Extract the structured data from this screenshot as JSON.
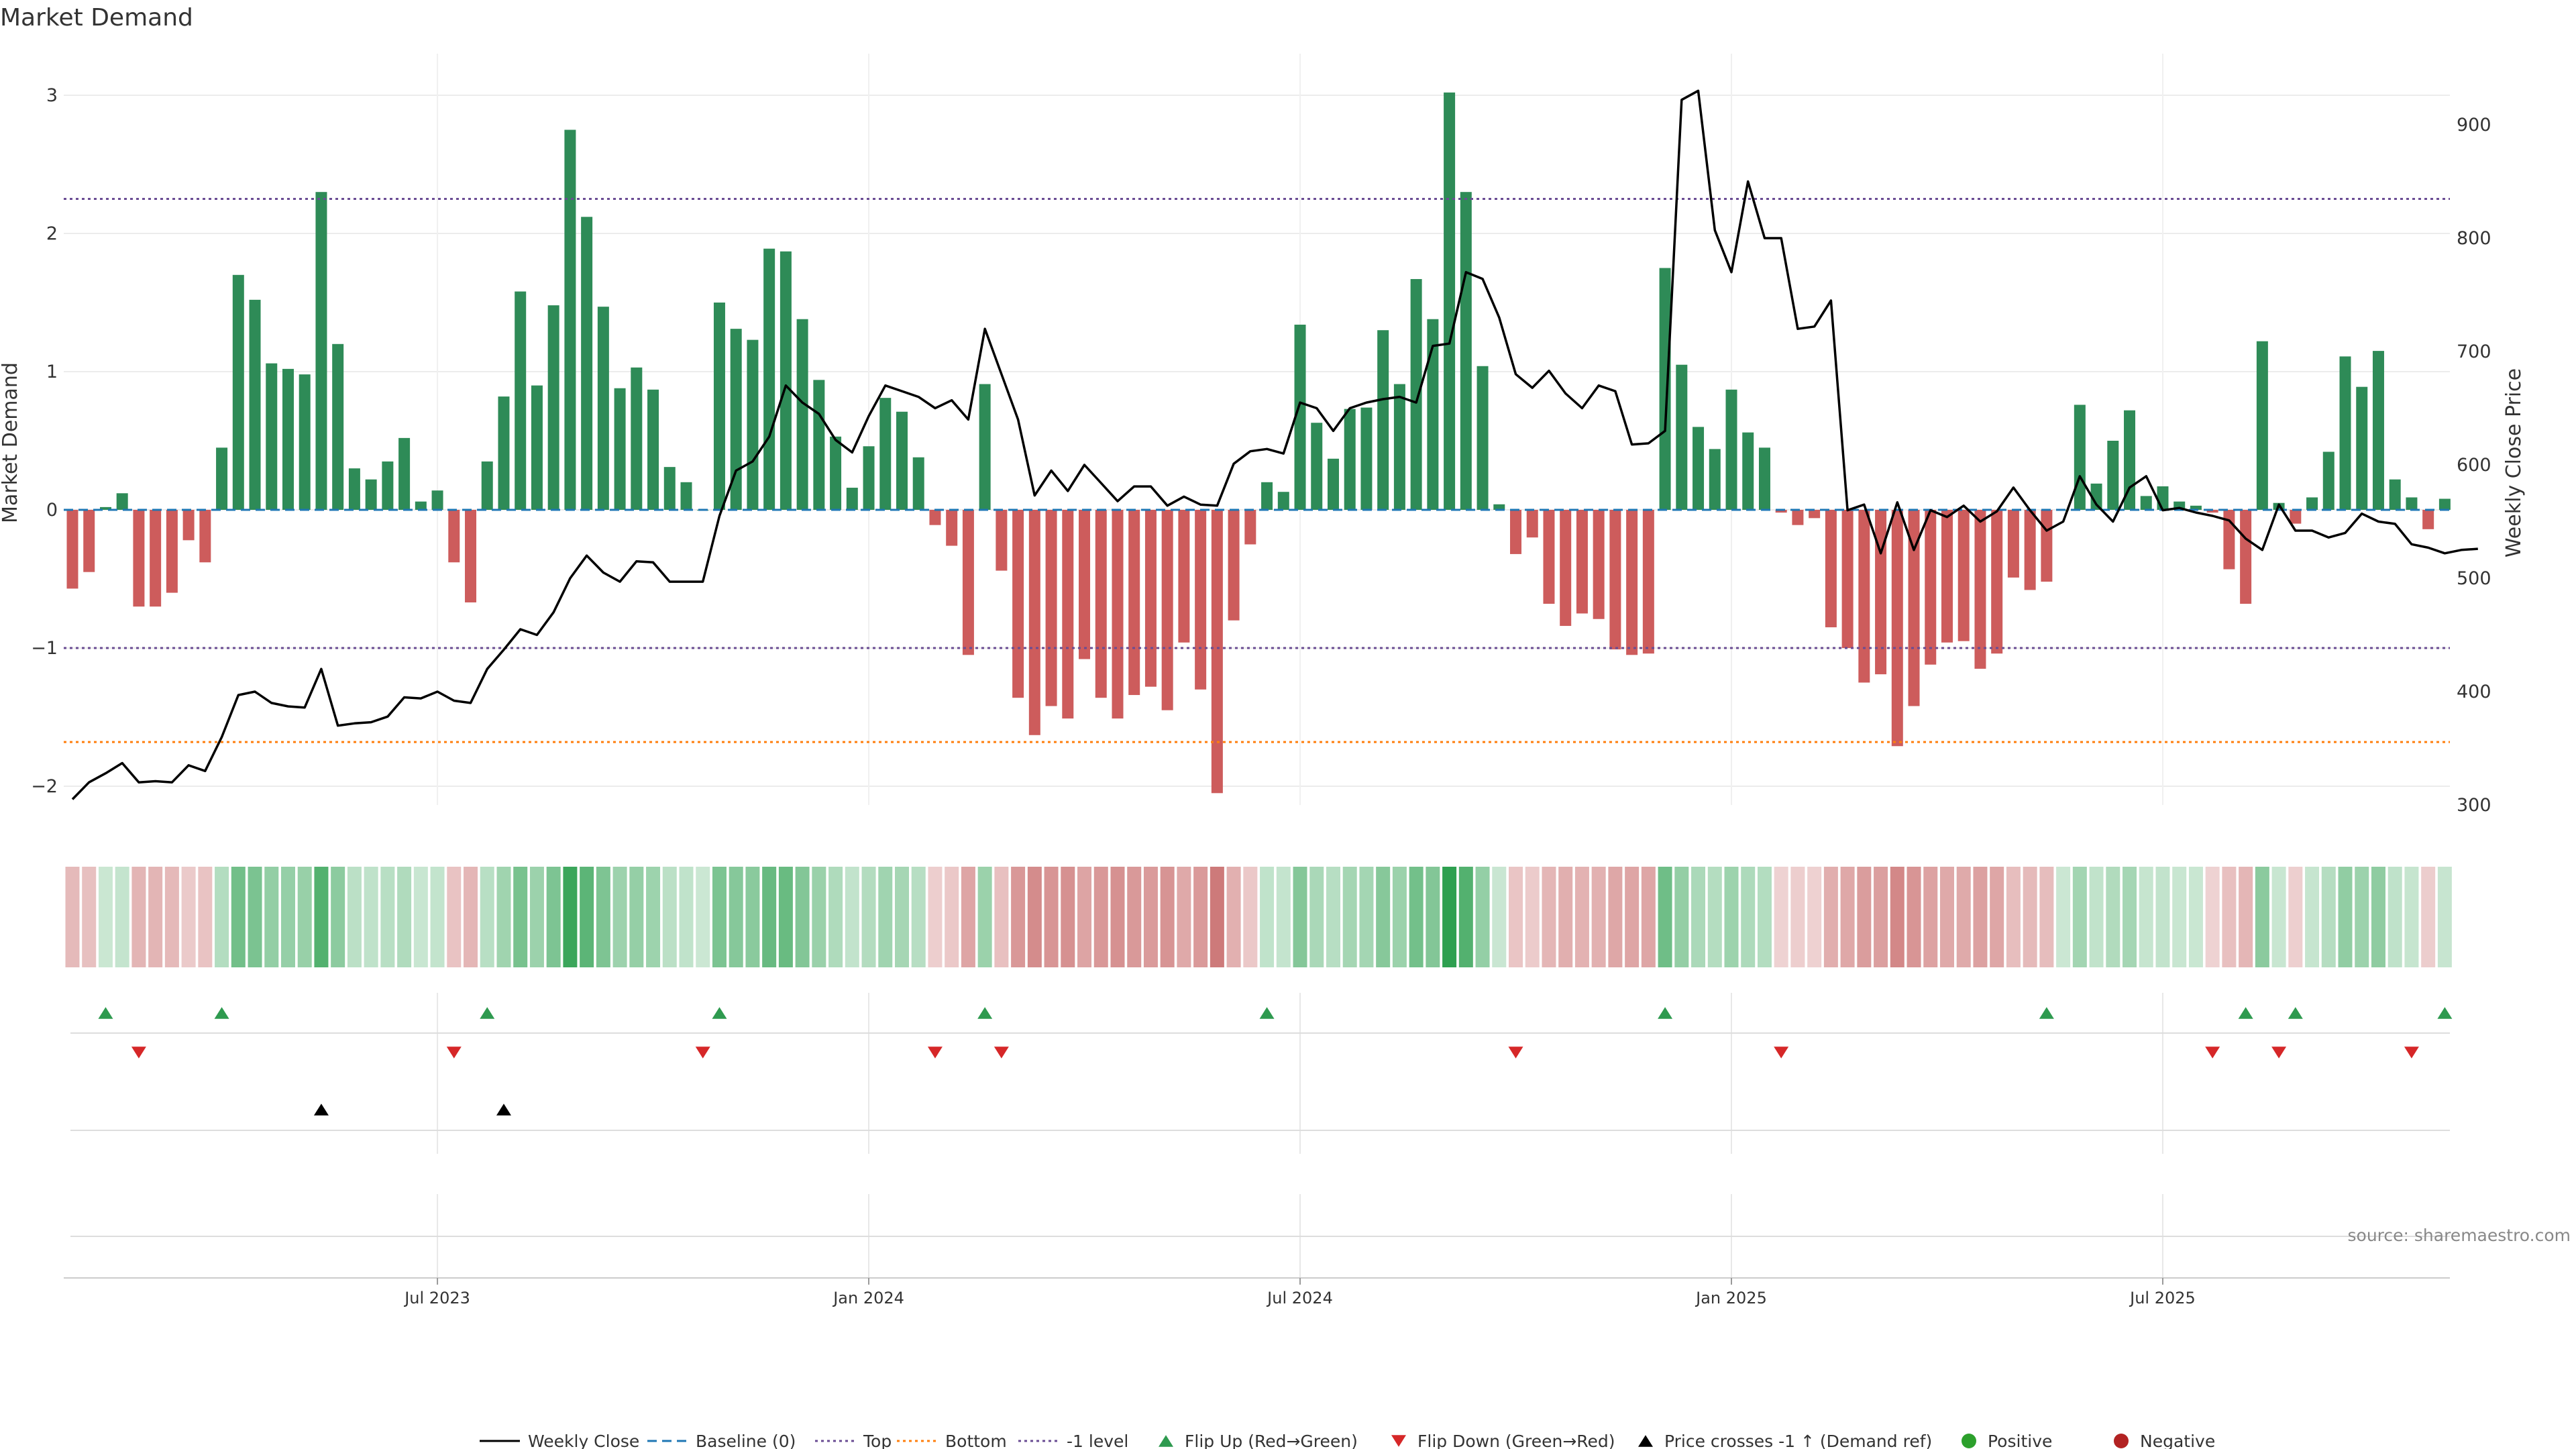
{
  "chart_data": {
    "type": "bar+line",
    "title": "Market Demand",
    "ylabel_left": "Market Demand",
    "ylabel_right": "Weekly Close Price",
    "source": "source: sharemaestro.com",
    "ylim_left": [
      -2.3,
      3.1
    ],
    "ylim_right": [
      280,
      940
    ],
    "left_ticks": [
      "3",
      "2",
      "1",
      "0",
      "−1",
      "−2"
    ],
    "left_tick_values": [
      3,
      2,
      1,
      0,
      -1,
      -2
    ],
    "right_ticks": [
      "900",
      "800",
      "700",
      "600",
      "500",
      "400",
      "300"
    ],
    "right_tick_values": [
      900,
      800,
      700,
      600,
      500,
      400,
      300
    ],
    "x_labels": [
      "Jul 2023",
      "Jan 2024",
      "Jul 2024",
      "Jan 2025",
      "Jul 2025"
    ],
    "x_label_weeks": [
      22,
      48,
      74,
      100,
      126
    ],
    "reference_lines": {
      "baseline": {
        "label": "Baseline (0)",
        "value": 0,
        "color": "#1f77b4"
      },
      "top": {
        "label": "Top",
        "value": 2.25,
        "color": "#6a4c93"
      },
      "bottom": {
        "label": "Bottom",
        "value": -1.68,
        "color": "#ff7f0e"
      },
      "minus_one": {
        "label": "-1 level",
        "value": -1,
        "color": "#6a4c93"
      }
    },
    "demand": [
      -0.57,
      -0.45,
      0.02,
      0.12,
      -0.7,
      -0.7,
      -0.6,
      -0.22,
      -0.38,
      0.45,
      1.7,
      1.52,
      1.06,
      1.02,
      0.98,
      2.3,
      1.2,
      0.3,
      0.22,
      0.35,
      0.52,
      0.06,
      0.14,
      -0.38,
      -0.67,
      0.35,
      0.82,
      1.58,
      0.9,
      1.48,
      2.75,
      2.12,
      1.47,
      0.88,
      1.03,
      0.87,
      0.31,
      0.2,
      0.0,
      1.5,
      1.31,
      1.23,
      1.89,
      1.87,
      1.38,
      0.94,
      0.53,
      0.16,
      0.46,
      0.81,
      0.71,
      0.38,
      -0.11,
      -0.26,
      -1.05,
      0.91,
      -0.44,
      -1.36,
      -1.63,
      -1.42,
      -1.51,
      -1.08,
      -1.36,
      -1.51,
      -1.34,
      -1.28,
      -1.45,
      -0.96,
      -1.3,
      -2.05,
      -0.8,
      -0.25,
      0.2,
      0.13,
      1.34,
      0.63,
      0.37,
      0.73,
      0.74,
      1.3,
      0.91,
      1.67,
      1.38,
      3.02,
      2.3,
      1.04,
      0.04,
      -0.32,
      -0.2,
      -0.68,
      -0.84,
      -0.75,
      -0.79,
      -1.01,
      -1.05,
      -1.04,
      1.75,
      1.05,
      0.6,
      0.44,
      0.87,
      0.56,
      0.45,
      -0.02,
      -0.11,
      -0.06,
      -0.85,
      -1.0,
      -1.25,
      -1.19,
      -1.71,
      -1.42,
      -1.12,
      -0.96,
      -0.95,
      -1.15,
      -1.04,
      -0.49,
      -0.58,
      -0.52,
      0.0,
      0.76,
      0.19,
      0.5,
      0.72,
      0.1,
      0.17,
      0.06,
      0.03,
      -0.02,
      -0.43,
      -0.68,
      1.22,
      0.05,
      -0.1,
      0.09,
      0.42,
      1.11,
      0.89,
      1.15,
      0.22,
      0.09,
      -0.14,
      0.08
    ],
    "close": [
      305,
      320,
      328,
      337,
      320,
      321,
      320,
      335,
      330,
      360,
      397,
      400,
      390,
      387,
      386,
      420,
      370,
      372,
      373,
      378,
      395,
      394,
      400,
      392,
      390,
      420,
      437,
      455,
      450,
      470,
      500,
      520,
      505,
      497,
      515,
      514,
      497,
      497,
      497,
      555,
      595,
      603,
      625,
      670,
      655,
      645,
      622,
      611,
      643,
      670,
      665,
      660,
      650,
      657,
      640,
      720,
      680,
      640,
      573,
      595,
      577,
      600,
      584,
      568,
      581,
      581,
      564,
      572,
      565,
      564,
      601,
      612,
      614,
      610,
      655,
      650,
      630,
      650,
      655,
      658,
      660,
      655,
      705,
      707,
      770,
      764,
      730,
      680,
      668,
      683,
      663,
      650,
      670,
      665,
      618,
      619,
      630,
      922,
      930,
      807,
      770,
      850,
      800,
      800,
      720,
      722,
      745,
      560,
      565,
      522,
      567,
      525,
      560,
      554,
      564,
      550,
      559,
      580,
      560,
      542,
      550,
      590,
      565,
      550,
      580,
      590,
      560,
      562,
      558,
      555,
      551,
      535,
      525,
      565,
      542,
      542,
      536,
      540,
      557,
      550,
      548,
      530,
      527,
      522,
      525,
      526
    ],
    "flip_up_weeks": [
      2,
      9,
      25,
      39,
      55,
      72,
      96,
      119,
      131,
      134,
      143
    ],
    "flip_down_weeks": [
      4,
      23,
      38,
      52,
      56,
      87,
      103,
      129,
      133,
      141
    ],
    "price_cross_weeks": [
      15,
      26
    ],
    "legend": [
      {
        "label": "Weekly Close",
        "kind": "line",
        "color": "#000000"
      },
      {
        "label": "Baseline (0)",
        "kind": "dash",
        "color": "#1f77b4"
      },
      {
        "label": "Top",
        "kind": "dot",
        "color": "#6a4c93"
      },
      {
        "label": "Bottom",
        "kind": "dot",
        "color": "#ff7f0e"
      },
      {
        "label": "-1 level",
        "kind": "dot",
        "color": "#6a4c93"
      },
      {
        "label": "Flip Up (Red→Green)",
        "kind": "tri-up",
        "color": "#2e9a4f"
      },
      {
        "label": "Flip Down (Green→Red)",
        "kind": "tri-down",
        "color": "#d62728"
      },
      {
        "label": "Price crosses -1 ↑ (Demand ref)",
        "kind": "tri-up",
        "color": "#000000"
      },
      {
        "label": "Positive",
        "kind": "dot-marker",
        "color": "#2ca02c"
      },
      {
        "label": "Negative",
        "kind": "dot-marker",
        "color": "#b22222"
      }
    ],
    "colors": {
      "positive": "#2e8b57",
      "negative": "#cd5c5c",
      "close": "#000000"
    }
  }
}
